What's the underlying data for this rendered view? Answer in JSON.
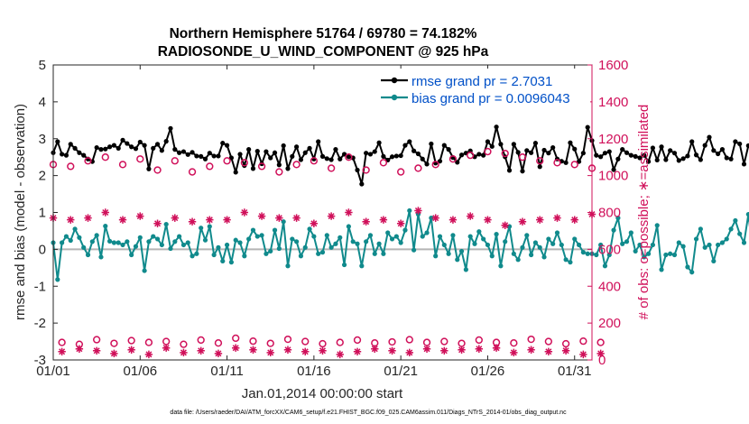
{
  "colors": {
    "rmse": "#000000",
    "bias": "#108a8c",
    "obs": "#d0105a",
    "zero_line": "#b4b4b4",
    "legend_text": "#0050c8"
  },
  "chart_data": {
    "type": "line",
    "title_line1": "Northern Hemisphere 51764 / 69780 = 74.182%",
    "title_line2": "RADIOSONDE_U_WIND_COMPONENT @ 925 hPa",
    "xlabel": "Jan.01,2014 00:00:00 start",
    "ylabel_left": "rmse and bias (model - observation)",
    "ylabel_right": "# of obs: o=possible; ∗=assimilated",
    "footnote": "data file: /Users/raeder/DAI/ATM_forcXX/CAM6_setup/f.e21.FHIST_BGC.f09_025.CAM6assim.011/Diags_NTrS_2014-01/obs_diag_output.nc",
    "x_range": [
      1,
      32
    ],
    "x_ticks": [
      1,
      6,
      11,
      16,
      21,
      26,
      31
    ],
    "x_tick_labels": [
      "01/01",
      "01/06",
      "01/11",
      "01/16",
      "01/21",
      "01/26",
      "01/31"
    ],
    "ylim_left": [
      -3,
      5
    ],
    "y_ticks_left": [
      -3,
      -2,
      -1,
      0,
      1,
      2,
      3,
      4,
      5
    ],
    "y_tick_labels_left": [
      "-3",
      "-2",
      "-1",
      "0",
      "1",
      "2",
      "3",
      "4",
      "5"
    ],
    "ylim_right": [
      0,
      1600
    ],
    "y_ticks_right": [
      0,
      200,
      400,
      600,
      800,
      1000,
      1200,
      1400,
      1600
    ],
    "y_tick_labels_right": [
      "0",
      "200",
      "400",
      "600",
      "800",
      "1000",
      "1200",
      "1400",
      "1600"
    ],
    "legend": [
      "rmse grand pr = 2.7031",
      "bias grand pr = 0.0096043"
    ],
    "legend_position": "top-right",
    "series": [
      {
        "name": "rmse",
        "axis": "left",
        "x_start": 1.0,
        "x_step": 0.25,
        "values": [
          2.62,
          2.92,
          2.58,
          2.55,
          2.85,
          2.74,
          2.62,
          2.55,
          2.45,
          2.38,
          2.76,
          2.71,
          2.72,
          2.78,
          2.82,
          2.74,
          2.96,
          2.87,
          2.78,
          2.73,
          2.91,
          2.82,
          2.18,
          2.74,
          2.85,
          2.68,
          2.93,
          3.28,
          2.71,
          2.62,
          2.65,
          2.57,
          2.63,
          2.53,
          2.52,
          2.45,
          2.61,
          2.53,
          2.53,
          2.88,
          2.82,
          2.48,
          2.09,
          2.58,
          2.27,
          2.71,
          2.19,
          2.66,
          2.32,
          2.65,
          2.48,
          2.62,
          2.29,
          2.81,
          2.19,
          2.52,
          2.78,
          2.43,
          2.62,
          2.74,
          2.45,
          2.92,
          2.52,
          2.46,
          2.43,
          2.71,
          2.45,
          2.58,
          2.51,
          2.48,
          2.15,
          1.77,
          2.61,
          2.58,
          2.65,
          2.89,
          2.52,
          2.42,
          2.51,
          2.53,
          2.54,
          2.82,
          2.92,
          2.67,
          2.59,
          2.45,
          2.31,
          2.86,
          2.34,
          2.39,
          2.82,
          2.71,
          2.49,
          2.36,
          2.56,
          2.61,
          2.67,
          2.51,
          2.58,
          2.55,
          2.92,
          2.79,
          3.32,
          2.85,
          2.51,
          2.14,
          2.85,
          2.63,
          2.12,
          2.68,
          2.62,
          2.88,
          2.24,
          2.69,
          2.61,
          2.76,
          2.45,
          2.39,
          2.35,
          2.89,
          2.72,
          2.38,
          2.61,
          3.31,
          2.95,
          2.55,
          2.51,
          2.61,
          2.65,
          2.16,
          2.45,
          2.71,
          2.62,
          2.55,
          2.52,
          2.48,
          2.55,
          2.38,
          2.75,
          2.42,
          2.78,
          2.43,
          2.68,
          2.61,
          2.41,
          2.46,
          2.53,
          2.92,
          2.56,
          2.43,
          2.82,
          3.04,
          2.68,
          2.59,
          2.71,
          2.48,
          2.45,
          2.92,
          2.86,
          2.31,
          2.81,
          2.78,
          2.85,
          2.67,
          2.72,
          2.76,
          2.98,
          2.81,
          2.65,
          2.32,
          2.55,
          2.74,
          2.41,
          2.88,
          2.21,
          2.31,
          2.45,
          2.81,
          2.35,
          2.72,
          2.81,
          2.61,
          2.39,
          2.85,
          2.52,
          2.94,
          2.45,
          2.52,
          2.62,
          2.65,
          2.68
        ]
      },
      {
        "name": "bias",
        "axis": "left",
        "x_start": 1.0,
        "x_step": 0.25,
        "values": [
          0.18,
          -0.82,
          0.18,
          0.35,
          0.24,
          0.55,
          0.32,
          0.05,
          -0.15,
          0.21,
          0.38,
          -0.21,
          0.63,
          0.22,
          0.18,
          0.18,
          0.12,
          0.21,
          -0.15,
          0.08,
          0.32,
          -0.58,
          0.21,
          0.35,
          0.28,
          0.12,
          0.68,
          0.02,
          0.21,
          0.35,
          0.12,
          0.18,
          -0.18,
          -0.12,
          0.58,
          0.25,
          0.62,
          -0.15,
          0.05,
          -0.32,
          0.12,
          -0.35,
          0.25,
          0.18,
          -0.18,
          0.28,
          0.52,
          0.35,
          0.38,
          -0.12,
          -0.05,
          0.52,
          0.02,
          0.75,
          -0.45,
          0.28,
          0.21,
          -0.18,
          0.05,
          0.55,
          0.35,
          -0.12,
          -0.08,
          0.38,
          0.05,
          0.15,
          0.32,
          -0.42,
          0.62,
          0.21,
          0.15,
          -0.45,
          0.21,
          0.38,
          -0.12,
          0.15,
          -0.12,
          0.45,
          0.28,
          0.35,
          0.18,
          0.52,
          1.05,
          -0.02,
          0.95,
          0.35,
          0.45,
          0.85,
          -0.18,
          0.35,
          0.12,
          -0.12,
          0.38,
          -0.28,
          -0.05,
          -0.55,
          0.35,
          0.15,
          0.48,
          0.28,
          0.12,
          -0.18,
          0.41,
          -0.45,
          0.21,
          0.62,
          -0.12,
          -0.28,
          0.05,
          0.38,
          -0.15,
          0.18,
          0.05,
          -0.21,
          0.28,
          0.15,
          0.45,
          0.12,
          -0.28,
          -0.35,
          0.28,
          0.12,
          -0.08,
          -0.12,
          -0.12,
          -0.15,
          0.12,
          -0.45,
          -0.15,
          0.52,
          0.85,
          0.15,
          0.21,
          0.45,
          -0.05,
          0.12,
          -0.21,
          -0.12,
          0.12,
          0.65,
          -0.55,
          -0.15,
          -0.12,
          -0.15,
          0.18,
          0.08,
          -0.48,
          -0.62,
          0.28,
          0.55,
          0.05,
          0.12,
          -0.32,
          0.12,
          0.18,
          0.28,
          0.55,
          0.78,
          0.42,
          0.18,
          0.95,
          -0.05,
          -0.15,
          0.35,
          0.68,
          0.85,
          -0.35,
          0.12,
          0.21,
          0.28,
          -0.18,
          -0.12,
          0.15,
          0.12,
          0.75,
          -0.35,
          -0.55,
          -0.38,
          -0.45,
          -0.62,
          -0.68,
          -0.75,
          -1.25,
          -1.72,
          -0.15,
          -0.15,
          -0.18,
          -0.12,
          0.42,
          0.02,
          0.55,
          -0.05,
          -0.32
        ]
      },
      {
        "name": "possible",
        "axis": "right",
        "marker": "o",
        "x_start": 1.0,
        "x_step": 0.5,
        "values": [
          1060,
          95,
          1050,
          85,
          1080,
          110,
          1100,
          90,
          1060,
          105,
          1090,
          95,
          1030,
          100,
          1080,
          85,
          1020,
          108,
          1050,
          92,
          1080,
          118,
          1070,
          102,
          1050,
          90,
          1020,
          112,
          1060,
          100,
          1080,
          88,
          1040,
          95,
          1100,
          108,
          1030,
          92,
          1070,
          98,
          1020,
          110,
          1040,
          95,
          1060,
          100,
          1090,
          90,
          1110,
          108,
          1130,
          95,
          1120,
          92,
          1100,
          112,
          1080,
          100,
          1070,
          88,
          1060,
          102,
          1040,
          95
        ]
      },
      {
        "name": "assimilated",
        "axis": "right",
        "marker": "*",
        "x_start": 1.0,
        "x_step": 0.5,
        "values": [
          770,
          45,
          760,
          60,
          770,
          50,
          800,
          35,
          760,
          55,
          780,
          30,
          740,
          65,
          770,
          40,
          750,
          50,
          760,
          35,
          760,
          65,
          800,
          55,
          780,
          40,
          770,
          55,
          770,
          45,
          740,
          50,
          780,
          30,
          800,
          45,
          750,
          60,
          760,
          50,
          740,
          40,
          810,
          60,
          770,
          50,
          760,
          55,
          780,
          60,
          760,
          65,
          730,
          40,
          750,
          55,
          760,
          45,
          770,
          50,
          760,
          30,
          790,
          35
        ]
      }
    ]
  }
}
